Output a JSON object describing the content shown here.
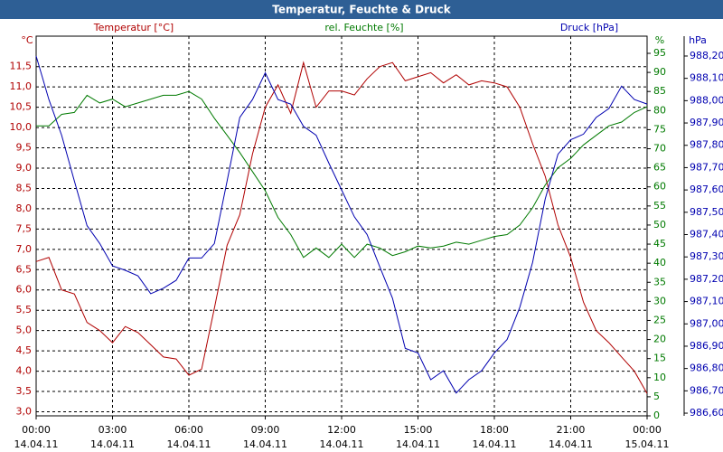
{
  "chart_data": {
    "type": "line",
    "title": "Temperatur, Feuchte & Druck",
    "y_label": "°C",
    "y2_label": "%",
    "y3_label": "hPa",
    "x": [
      0,
      0.5,
      1,
      1.5,
      2,
      2.5,
      3,
      3.5,
      4,
      4.5,
      5,
      5.5,
      6,
      6.5,
      7,
      7.5,
      8,
      8.5,
      9,
      9.5,
      10,
      10.5,
      11,
      11.5,
      12,
      12.5,
      13,
      13.5,
      14,
      14.5,
      15,
      15.5,
      16,
      16.5,
      17,
      17.5,
      18,
      18.5,
      19,
      19.5,
      20,
      20.5,
      21,
      21.5,
      22,
      22.5,
      23,
      23.5,
      24
    ],
    "xlim": [
      0,
      24
    ],
    "xticks": [
      {
        "value": 0,
        "label": "00:00"
      },
      {
        "value": 3,
        "label": "03:00"
      },
      {
        "value": 6,
        "label": "06:00"
      },
      {
        "value": 9,
        "label": "09:00"
      },
      {
        "value": 12,
        "label": "12:00"
      },
      {
        "value": 15,
        "label": "15:00"
      },
      {
        "value": 18,
        "label": "18:00"
      },
      {
        "value": 21,
        "label": "21:00"
      },
      {
        "value": 24,
        "label": "00:00"
      }
    ],
    "xtick_dates": [
      "14.04.11",
      "14.04.11",
      "14.04.11",
      "14.04.11",
      "14.04.11",
      "14.04.11",
      "14.04.11",
      "14.04.11",
      "15.04.11"
    ],
    "ylim": [
      2.9,
      12.25
    ],
    "yticks": [
      {
        "value": 3,
        "label": "3,0"
      },
      {
        "value": 3.5,
        "label": "3,5"
      },
      {
        "value": 4,
        "label": "4,0"
      },
      {
        "value": 4.5,
        "label": "4,5"
      },
      {
        "value": 5,
        "label": "5,0"
      },
      {
        "value": 5.5,
        "label": "5,5"
      },
      {
        "value": 6,
        "label": "6,0"
      },
      {
        "value": 6.5,
        "label": "6,5"
      },
      {
        "value": 7,
        "label": "7,0"
      },
      {
        "value": 7.5,
        "label": "7,5"
      },
      {
        "value": 8,
        "label": "8,0"
      },
      {
        "value": 8.5,
        "label": "8,5"
      },
      {
        "value": 9,
        "label": "9,0"
      },
      {
        "value": 9.5,
        "label": "9,5"
      },
      {
        "value": 10,
        "label": "10,0"
      },
      {
        "value": 10.5,
        "label": "10,5"
      },
      {
        "value": 11,
        "label": "11,0"
      },
      {
        "value": 11.5,
        "label": "11,5"
      }
    ],
    "y2lim": [
      0,
      99.5
    ],
    "y2ticks": [
      0,
      5,
      10,
      15,
      20,
      25,
      30,
      35,
      40,
      45,
      50,
      55,
      60,
      65,
      70,
      75,
      80,
      85,
      90,
      95
    ],
    "y3lim": [
      986.588,
      988.289
    ],
    "y3ticks": [
      {
        "value": 986.6,
        "label": "986,60"
      },
      {
        "value": 986.7,
        "label": "986,70"
      },
      {
        "value": 986.8,
        "label": "986,80"
      },
      {
        "value": 986.9,
        "label": "986,90"
      },
      {
        "value": 987.0,
        "label": "987,00"
      },
      {
        "value": 987.1,
        "label": "987,10"
      },
      {
        "value": 987.2,
        "label": "987,20"
      },
      {
        "value": 987.3,
        "label": "987,30"
      },
      {
        "value": 987.4,
        "label": "987,40"
      },
      {
        "value": 987.5,
        "label": "987,50"
      },
      {
        "value": 987.6,
        "label": "987,60"
      },
      {
        "value": 987.7,
        "label": "987,70"
      },
      {
        "value": 987.8,
        "label": "987,80"
      },
      {
        "value": 987.9,
        "label": "987,90"
      },
      {
        "value": 988.0,
        "label": "988,00"
      },
      {
        "value": 988.1,
        "label": "988,10"
      },
      {
        "value": 988.2,
        "label": "988,20"
      }
    ],
    "grid": true,
    "series": [
      {
        "name": "Temperatur [°C]",
        "color": "#b00000",
        "axis": "y",
        "values": [
          6.7,
          6.8,
          6.0,
          5.9,
          5.2,
          5.0,
          4.7,
          5.1,
          4.95,
          4.65,
          4.35,
          4.3,
          3.9,
          4.05,
          5.55,
          7.1,
          7.85,
          9.35,
          10.5,
          11.05,
          10.35,
          11.6,
          10.5,
          10.9,
          10.9,
          10.8,
          11.2,
          11.5,
          11.6,
          11.15,
          11.25,
          11.35,
          11.1,
          11.3,
          11.05,
          11.15,
          11.1,
          11.0,
          10.5,
          9.6,
          8.8,
          7.6,
          6.8,
          5.7,
          5.0,
          4.7,
          4.35,
          4.0,
          3.45
        ]
      },
      {
        "name": "rel. Feuchte [%]",
        "color": "#007a00",
        "axis": "y2",
        "values": [
          76,
          76,
          79,
          79.5,
          84,
          82,
          83,
          81,
          82,
          83,
          84,
          84,
          85,
          83,
          78,
          73.5,
          69,
          64,
          59,
          52,
          47.5,
          41.5,
          44,
          41.5,
          45,
          41.5,
          45,
          44,
          42,
          43,
          44.5,
          44,
          44.5,
          45.5,
          45,
          46,
          47,
          47.5,
          50,
          54.5,
          60.5,
          65,
          67.5,
          71,
          73.5,
          76,
          77,
          79.5,
          81
        ]
      },
      {
        "name": "Druck [hPa]",
        "color": "#0000b0",
        "axis": "y3",
        "values": [
          988.2,
          988.005,
          987.845,
          987.64,
          987.44,
          987.36,
          987.26,
          987.24,
          987.215,
          987.135,
          987.16,
          987.195,
          987.295,
          987.295,
          987.36,
          987.64,
          987.925,
          988.005,
          988.125,
          988.005,
          987.985,
          987.885,
          987.845,
          987.72,
          987.6,
          987.48,
          987.4,
          987.255,
          987.115,
          986.89,
          986.87,
          986.75,
          986.79,
          986.69,
          986.75,
          986.79,
          986.87,
          986.93,
          987.075,
          987.275,
          987.56,
          987.76,
          987.825,
          987.85,
          987.925,
          987.965,
          988.065,
          988.005,
          987.985
        ]
      }
    ]
  }
}
